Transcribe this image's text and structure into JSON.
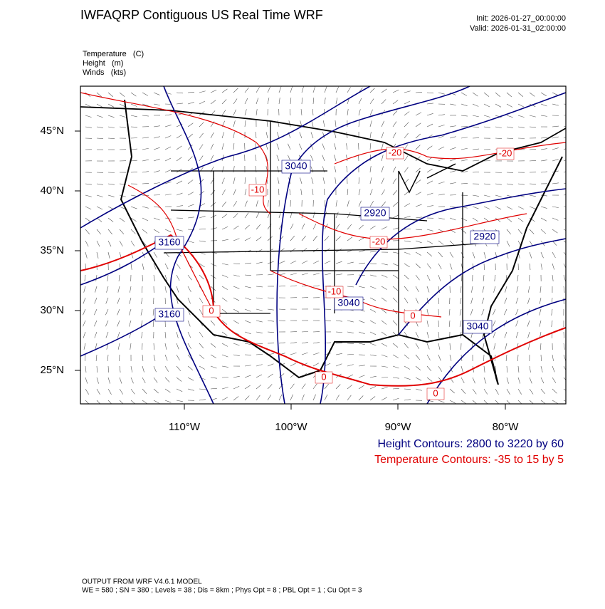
{
  "header": {
    "title": "IWFAQRP Contiguous US Real Time WRF",
    "init": "Init: 2026-01-27_00:00:00",
    "valid": "Valid: 2026-01-31_02:00:00"
  },
  "fields": [
    "Temperature   (C)",
    "Height   (m)",
    "Winds   (kts)"
  ],
  "map": {
    "lat_labels": [
      "45°N",
      "40°N",
      "35°N",
      "30°N",
      "25°N"
    ],
    "lon_labels": [
      "110°W",
      "100°W",
      "90°W",
      "80°W"
    ],
    "height_labels": [
      "3040",
      "2920",
      "2920",
      "3160",
      "3160",
      "3040",
      "3040"
    ],
    "temperature_labels": [
      "-20",
      "-20",
      "-10",
      "-20",
      "-10",
      "0",
      "0",
      "0",
      "0"
    ]
  },
  "legend": {
    "height": "Height Contours: 2800 to 3220 by 60",
    "temperature": "Temperature Contours: -35 to 15 by 5"
  },
  "footer": {
    "line1": "OUTPUT FROM WRF V4.6.1 MODEL",
    "line2": "WE = 580 ; SN = 380 ; Levels = 38 ; Dis = 8km ; Phys Opt = 8 ; PBL Opt = 1 ; Cu Opt = 3"
  }
}
